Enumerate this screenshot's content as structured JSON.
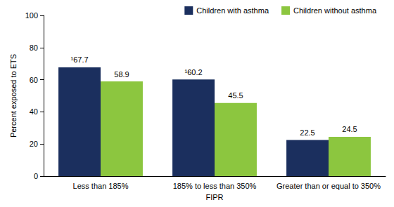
{
  "chart_data": {
    "type": "bar",
    "x_label": "FIPR",
    "y_label": "Percent exposed to ETS",
    "categories": [
      "Less than 185%",
      "185% to less than 350%",
      "Greater than or equal to 350%"
    ],
    "series": [
      {
        "name": "Children with asthma",
        "color": "#1b2f5e",
        "values": [
          67.7,
          60.2,
          22.5
        ],
        "value_labels": [
          "¹67.7",
          "¹60.2",
          "22.5"
        ]
      },
      {
        "name": "Children without asthma",
        "color": "#8cc63f",
        "values": [
          58.9,
          45.5,
          24.5
        ],
        "value_labels": [
          "58.9",
          "45.5",
          "24.5"
        ]
      }
    ],
    "ylim": [
      0,
      100
    ],
    "yticks": [
      0,
      20,
      40,
      60,
      80,
      100
    ],
    "grid": false,
    "legend": "top-right",
    "data_labels": true
  }
}
